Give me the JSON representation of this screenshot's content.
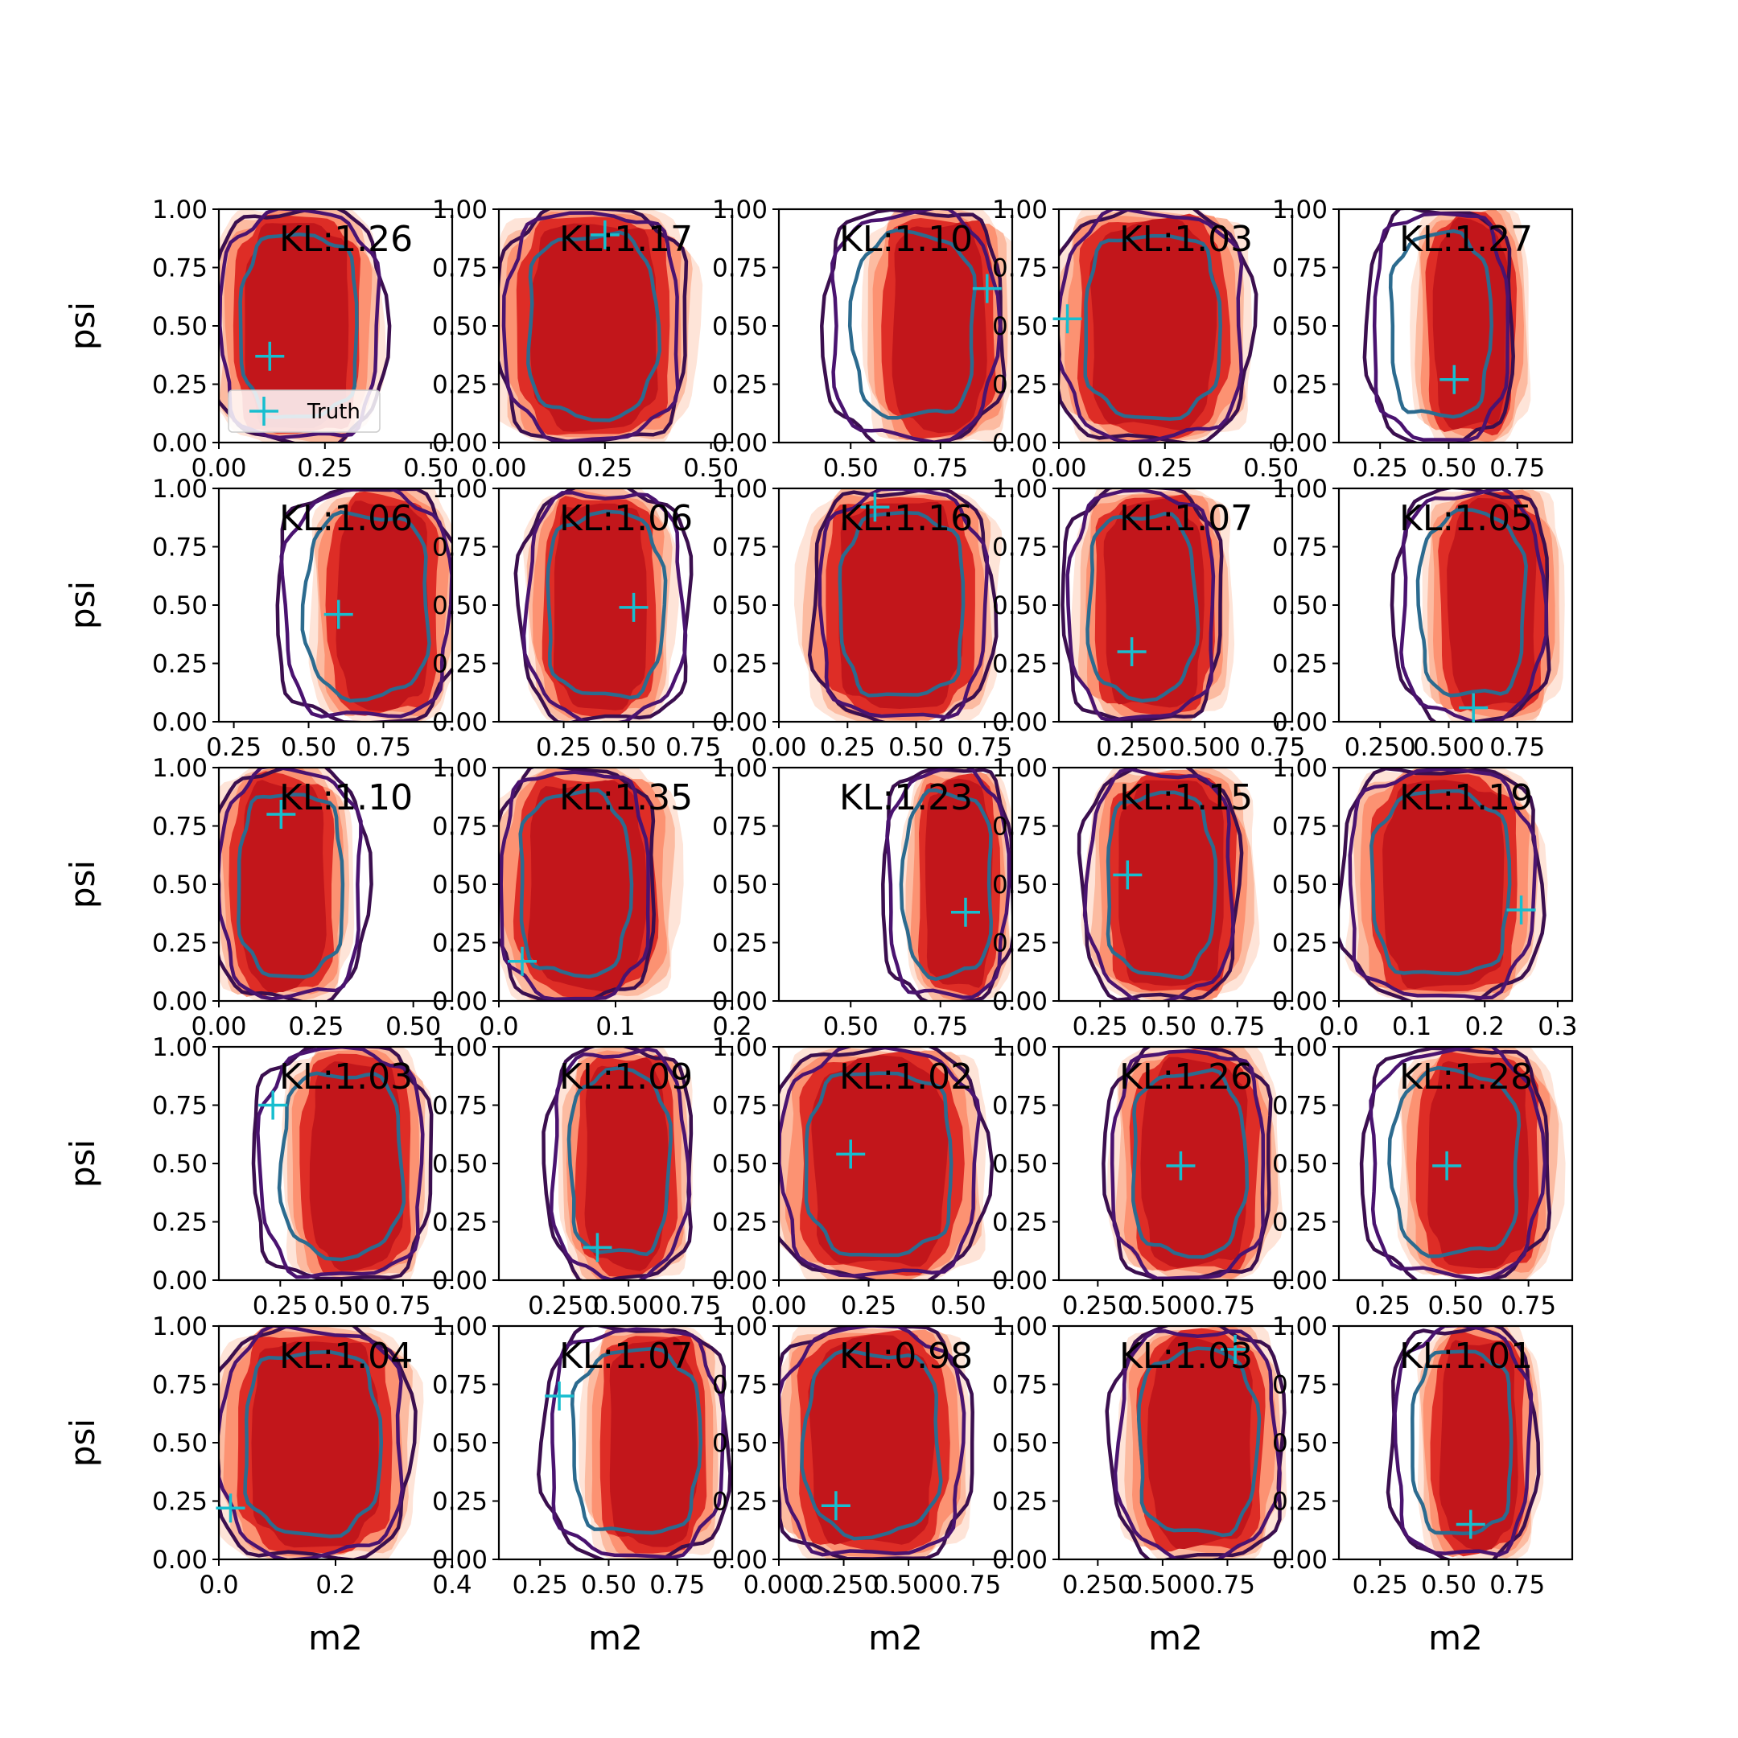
{
  "figure": {
    "legend_label": "Truth",
    "legend_location": "lower-left of first panel"
  },
  "colors": {
    "fill_levels": [
      "#fee4d8",
      "#fcbba1",
      "#fc9272",
      "#de2d26",
      "#c2161b"
    ],
    "line_levels": [
      "#3b0f4f",
      "#4a1370",
      "#2c6b8f"
    ],
    "truth_marker": "#17becf",
    "axes": "#000000"
  },
  "chart_data": [
    {
      "type": "contour",
      "row": 0,
      "col": 0,
      "kl_label": "KL:1.26",
      "truth": [
        0.12,
        0.37
      ],
      "xlim": [
        0.0,
        0.55
      ],
      "ylim": [
        0,
        1
      ],
      "xticks": [
        "0.00",
        "0.25",
        "0.50"
      ],
      "yticks": [
        "0.00",
        "0.25",
        "0.50",
        "0.75",
        "1.00"
      ],
      "ylabel": "psi",
      "xlabel": "",
      "fill_x": [
        0.0,
        0.37
      ],
      "line_x": [
        0.0,
        0.38
      ]
    },
    {
      "type": "contour",
      "row": 0,
      "col": 1,
      "kl_label": "KL:1.17",
      "truth": [
        0.25,
        0.89
      ],
      "xlim": [
        0.0,
        0.55
      ],
      "ylim": [
        0,
        1
      ],
      "xticks": [
        "0.00",
        "0.25",
        "0.50"
      ],
      "yticks": [
        "0.00",
        "0.25",
        "0.50",
        "0.75",
        "1.00"
      ],
      "ylabel": "",
      "xlabel": "",
      "fill_x": [
        0.0,
        0.45
      ],
      "line_x": [
        0.01,
        0.43
      ]
    },
    {
      "type": "contour",
      "row": 0,
      "col": 2,
      "kl_label": "KL:1.10",
      "truth": [
        0.88,
        0.66
      ],
      "xlim": [
        0.3,
        0.95
      ],
      "ylim": [
        0,
        1
      ],
      "xticks": [
        "0.50",
        "0.75"
      ],
      "yticks": [
        "0.00",
        "0.25",
        "0.50",
        "0.75",
        "1.00"
      ],
      "ylabel": "",
      "xlabel": "",
      "fill_x": [
        0.55,
        0.94
      ],
      "line_x": [
        0.44,
        0.91
      ]
    },
    {
      "type": "contour",
      "row": 0,
      "col": 3,
      "kl_label": "KL:1.03",
      "truth": [
        0.02,
        0.53
      ],
      "xlim": [
        0.0,
        0.55
      ],
      "ylim": [
        0,
        1
      ],
      "xticks": [
        "0.00",
        "0.25",
        "0.50"
      ],
      "yticks": [
        "0.00",
        "0.25",
        "0.50",
        "0.75",
        "1.00"
      ],
      "ylabel": "",
      "xlabel": "",
      "fill_x": [
        0.0,
        0.44
      ],
      "line_x": [
        0.0,
        0.44
      ]
    },
    {
      "type": "contour",
      "row": 0,
      "col": 4,
      "kl_label": "KL:1.27",
      "truth": [
        0.52,
        0.27
      ],
      "xlim": [
        0.1,
        0.95
      ],
      "ylim": [
        0,
        1
      ],
      "xticks": [
        "0.25",
        "0.50",
        "0.75"
      ],
      "yticks": [
        "0.00",
        "0.25",
        "0.50",
        "0.75",
        "1.00"
      ],
      "ylabel": "",
      "xlabel": "",
      "fill_x": [
        0.38,
        0.78
      ],
      "line_x": [
        0.22,
        0.72
      ]
    },
    {
      "type": "contour",
      "row": 1,
      "col": 0,
      "kl_label": "KL:1.06",
      "truth": [
        0.6,
        0.46
      ],
      "xlim": [
        0.2,
        0.98
      ],
      "ylim": [
        0,
        1
      ],
      "xticks": [
        "0.25",
        "0.50",
        "0.75"
      ],
      "yticks": [
        "0.00",
        "0.25",
        "0.50",
        "0.75",
        "1.00"
      ],
      "ylabel": "psi",
      "xlabel": "",
      "fill_x": [
        0.52,
        0.98
      ],
      "line_x": [
        0.41,
        0.98
      ]
    },
    {
      "type": "contour",
      "row": 1,
      "col": 1,
      "kl_label": "KL:1.06",
      "truth": [
        0.52,
        0.49
      ],
      "xlim": [
        0.0,
        0.9
      ],
      "ylim": [
        0,
        1
      ],
      "xticks": [
        "0.25",
        "0.50",
        "0.75"
      ],
      "yticks": [
        "0.00",
        "0.25",
        "0.50",
        "0.75",
        "1.00"
      ],
      "ylabel": "",
      "xlabel": "",
      "fill_x": [
        0.12,
        0.66
      ],
      "line_x": [
        0.1,
        0.72
      ]
    },
    {
      "type": "contour",
      "row": 1,
      "col": 2,
      "kl_label": "KL:1.16",
      "truth": [
        0.35,
        0.92
      ],
      "xlim": [
        0.0,
        0.85
      ],
      "ylim": [
        0,
        1
      ],
      "xticks": [
        "0.00",
        "0.25",
        "0.50",
        "0.75"
      ],
      "yticks": [
        "0.00",
        "0.25",
        "0.50",
        "0.75",
        "1.00"
      ],
      "ylabel": "",
      "xlabel": "",
      "fill_x": [
        0.1,
        0.78
      ],
      "line_x": [
        0.14,
        0.76
      ]
    },
    {
      "type": "contour",
      "row": 1,
      "col": 3,
      "kl_label": "KL:1.07",
      "truth": [
        0.25,
        0.3
      ],
      "xlim": [
        0.0,
        0.8
      ],
      "ylim": [
        0,
        1
      ],
      "xticks": [
        "0.250",
        "0.500",
        "0.75"
      ],
      "yticks": [
        "0.00",
        "0.25",
        "0.50",
        "0.75",
        "1.00"
      ],
      "ylabel": "",
      "xlabel": "",
      "fill_x": [
        0.07,
        0.58
      ],
      "line_x": [
        0.03,
        0.54
      ]
    },
    {
      "type": "contour",
      "row": 1,
      "col": 4,
      "kl_label": "KL:1.05",
      "truth": [
        0.59,
        0.06
      ],
      "xlim": [
        0.1,
        0.95
      ],
      "ylim": [
        0,
        1
      ],
      "xticks": [
        "0.250",
        "0.500",
        "0.75"
      ],
      "yticks": [
        "0.00",
        "0.25",
        "0.50",
        "0.75",
        "1.00"
      ],
      "ylabel": "",
      "xlabel": "",
      "fill_x": [
        0.42,
        0.9
      ],
      "line_x": [
        0.32,
        0.85
      ]
    },
    {
      "type": "contour",
      "row": 2,
      "col": 0,
      "kl_label": "KL:1.10",
      "truth": [
        0.16,
        0.8
      ],
      "xlim": [
        0.0,
        0.6
      ],
      "ylim": [
        0,
        1
      ],
      "xticks": [
        "0.00",
        "0.25",
        "0.50"
      ],
      "yticks": [
        "0.00",
        "0.25",
        "0.50",
        "0.75",
        "1.00"
      ],
      "ylabel": "psi",
      "xlabel": "",
      "fill_x": [
        0.0,
        0.33
      ],
      "line_x": [
        0.0,
        0.37
      ]
    },
    {
      "type": "contour",
      "row": 2,
      "col": 1,
      "kl_label": "KL:1.35",
      "truth": [
        0.02,
        0.17
      ],
      "xlim": [
        0.0,
        0.2
      ],
      "ylim": [
        0,
        1
      ],
      "xticks": [
        "0.0",
        "0.1",
        "0.2"
      ],
      "yticks": [
        "0.00",
        "0.25",
        "0.50",
        "0.75",
        "1.00"
      ],
      "ylabel": "",
      "xlabel": "",
      "fill_x": [
        0.0,
        0.15
      ],
      "line_x": [
        0.0,
        0.13
      ]
    },
    {
      "type": "contour",
      "row": 2,
      "col": 2,
      "kl_label": "KL:1.23",
      "truth": [
        0.82,
        0.38
      ],
      "xlim": [
        0.3,
        0.95
      ],
      "ylim": [
        0,
        1
      ],
      "xticks": [
        "0.50",
        "0.75"
      ],
      "yticks": [
        "0.00",
        "0.25",
        "0.50",
        "0.75",
        "1.00"
      ],
      "ylabel": "",
      "xlabel": "",
      "fill_x": [
        0.66,
        0.94
      ],
      "line_x": [
        0.6,
        0.94
      ]
    },
    {
      "type": "contour",
      "row": 2,
      "col": 3,
      "kl_label": "KL:1.15",
      "truth": [
        0.35,
        0.54
      ],
      "xlim": [
        0.1,
        0.95
      ],
      "ylim": [
        0,
        1
      ],
      "xticks": [
        "0.25",
        "0.50",
        "0.75"
      ],
      "yticks": [
        "0.00",
        "0.25",
        "0.50",
        "0.75",
        "1.00"
      ],
      "ylabel": "",
      "xlabel": "",
      "fill_x": [
        0.22,
        0.8
      ],
      "line_x": [
        0.2,
        0.74
      ]
    },
    {
      "type": "contour",
      "row": 2,
      "col": 4,
      "kl_label": "KL:1.19",
      "truth": [
        0.25,
        0.39
      ],
      "xlim": [
        0.0,
        0.32
      ],
      "ylim": [
        0,
        1
      ],
      "xticks": [
        "0.0",
        "0.1",
        "0.2",
        "0.3"
      ],
      "yticks": [
        "0.00",
        "0.25",
        "0.50",
        "0.75",
        "1.00"
      ],
      "ylabel": "",
      "xlabel": "",
      "fill_x": [
        0.02,
        0.27
      ],
      "line_x": [
        0.01,
        0.27
      ]
    },
    {
      "type": "contour",
      "row": 3,
      "col": 0,
      "kl_label": "KL:1.03",
      "truth": [
        0.22,
        0.75
      ],
      "xlim": [
        0.0,
        0.95
      ],
      "ylim": [
        0,
        1
      ],
      "xticks": [
        "0.25",
        "0.50",
        "0.75"
      ],
      "yticks": [
        "0.00",
        "0.25",
        "0.50",
        "0.75",
        "1.00"
      ],
      "ylabel": "psi",
      "xlabel": "",
      "fill_x": [
        0.28,
        0.84
      ],
      "line_x": [
        0.16,
        0.84
      ]
    },
    {
      "type": "contour",
      "row": 3,
      "col": 1,
      "kl_label": "KL:1.09",
      "truth": [
        0.38,
        0.14
      ],
      "xlim": [
        0.0,
        0.9
      ],
      "ylim": [
        0,
        1
      ],
      "xticks": [
        "0.250",
        "0.500",
        "0.75"
      ],
      "yticks": [
        "0.00",
        "0.25",
        "0.50",
        "0.75",
        "1.00"
      ],
      "ylabel": "",
      "xlabel": "",
      "fill_x": [
        0.25,
        0.73
      ],
      "line_x": [
        0.2,
        0.73
      ]
    },
    {
      "type": "contour",
      "row": 3,
      "col": 2,
      "kl_label": "KL:1.02",
      "truth": [
        0.2,
        0.54
      ],
      "xlim": [
        0.0,
        0.65
      ],
      "ylim": [
        0,
        1
      ],
      "xticks": [
        "0.00",
        "0.25",
        "0.50"
      ],
      "yticks": [
        "0.00",
        "0.25",
        "0.50",
        "0.75",
        "1.00"
      ],
      "ylabel": "",
      "xlabel": "",
      "fill_x": [
        0.0,
        0.56
      ],
      "line_x": [
        0.0,
        0.56
      ]
    },
    {
      "type": "contour",
      "row": 3,
      "col": 3,
      "kl_label": "KL:1.26",
      "truth": [
        0.57,
        0.49
      ],
      "xlim": [
        0.1,
        1.0
      ],
      "ylim": [
        0,
        1
      ],
      "xticks": [
        "0.250",
        "0.500",
        "0.75"
      ],
      "yticks": [
        "0.00",
        "0.25",
        "0.50",
        "0.75",
        "1.00"
      ],
      "ylabel": "",
      "xlabel": "",
      "fill_x": [
        0.32,
        0.93
      ],
      "line_x": [
        0.3,
        0.9
      ]
    },
    {
      "type": "contour",
      "row": 3,
      "col": 4,
      "kl_label": "KL:1.28",
      "truth": [
        0.47,
        0.49
      ],
      "xlim": [
        0.1,
        0.9
      ],
      "ylim": [
        0,
        1
      ],
      "xticks": [
        "0.25",
        "0.50",
        "0.75"
      ],
      "yticks": [
        "0.00",
        "0.25",
        "0.50",
        "0.75",
        "1.00"
      ],
      "ylabel": "",
      "xlabel": "",
      "fill_x": [
        0.32,
        0.84
      ],
      "line_x": [
        0.2,
        0.8
      ]
    },
    {
      "type": "contour",
      "row": 4,
      "col": 0,
      "kl_label": "KL:1.04",
      "truth": [
        0.02,
        0.22
      ],
      "xlim": [
        0.0,
        0.4
      ],
      "ylim": [
        0,
        1
      ],
      "xticks": [
        "0.0",
        "0.2",
        "0.4"
      ],
      "yticks": [
        "0.00",
        "0.25",
        "0.50",
        "0.75",
        "1.00"
      ],
      "ylabel": "psi",
      "xlabel": "m2",
      "fill_x": [
        0.0,
        0.33
      ],
      "line_x": [
        0.0,
        0.32
      ]
    },
    {
      "type": "contour",
      "row": 4,
      "col": 1,
      "kl_label": "KL:1.07",
      "truth": [
        0.32,
        0.7
      ],
      "xlim": [
        0.1,
        0.95
      ],
      "ylim": [
        0,
        1
      ],
      "xticks": [
        "0.25",
        "0.50",
        "0.75"
      ],
      "yticks": [
        "0.00",
        "0.25",
        "0.50",
        "0.75",
        "1.00"
      ],
      "ylabel": "",
      "xlabel": "m2",
      "fill_x": [
        0.42,
        0.9
      ],
      "line_x": [
        0.28,
        0.92
      ]
    },
    {
      "type": "contour",
      "row": 4,
      "col": 2,
      "kl_label": "KL:0.98",
      "truth": [
        0.22,
        0.23
      ],
      "xlim": [
        0.0,
        0.9
      ],
      "ylim": [
        0,
        1
      ],
      "xticks": [
        "0.000",
        "0.250",
        "0.500",
        "0.75"
      ],
      "yticks": [
        "0.00",
        "0.25",
        "0.50",
        "0.75",
        "1.00"
      ],
      "ylabel": "",
      "xlabel": "m2",
      "fill_x": [
        0.0,
        0.72
      ],
      "line_x": [
        0.0,
        0.72
      ]
    },
    {
      "type": "contour",
      "row": 4,
      "col": 3,
      "kl_label": "KL:1.03",
      "truth": [
        0.78,
        0.9
      ],
      "xlim": [
        0.1,
        1.0
      ],
      "ylim": [
        0,
        1
      ],
      "xticks": [
        "0.250",
        "0.500",
        "0.75"
      ],
      "yticks": [
        "0.00",
        "0.25",
        "0.50",
        "0.75",
        "1.00"
      ],
      "ylabel": "",
      "xlabel": "m2",
      "fill_x": [
        0.35,
        0.95
      ],
      "line_x": [
        0.32,
        0.95
      ]
    },
    {
      "type": "contour",
      "row": 4,
      "col": 4,
      "kl_label": "KL:1.01",
      "truth": [
        0.58,
        0.15
      ],
      "xlim": [
        0.1,
        0.95
      ],
      "ylim": [
        0,
        1
      ],
      "xticks": [
        "0.25",
        "0.50",
        "0.75"
      ],
      "yticks": [
        "0.00",
        "0.25",
        "0.50",
        "0.75",
        "1.00"
      ],
      "ylabel": "",
      "xlabel": "m2",
      "fill_x": [
        0.4,
        0.82
      ],
      "line_x": [
        0.3,
        0.8
      ]
    }
  ]
}
